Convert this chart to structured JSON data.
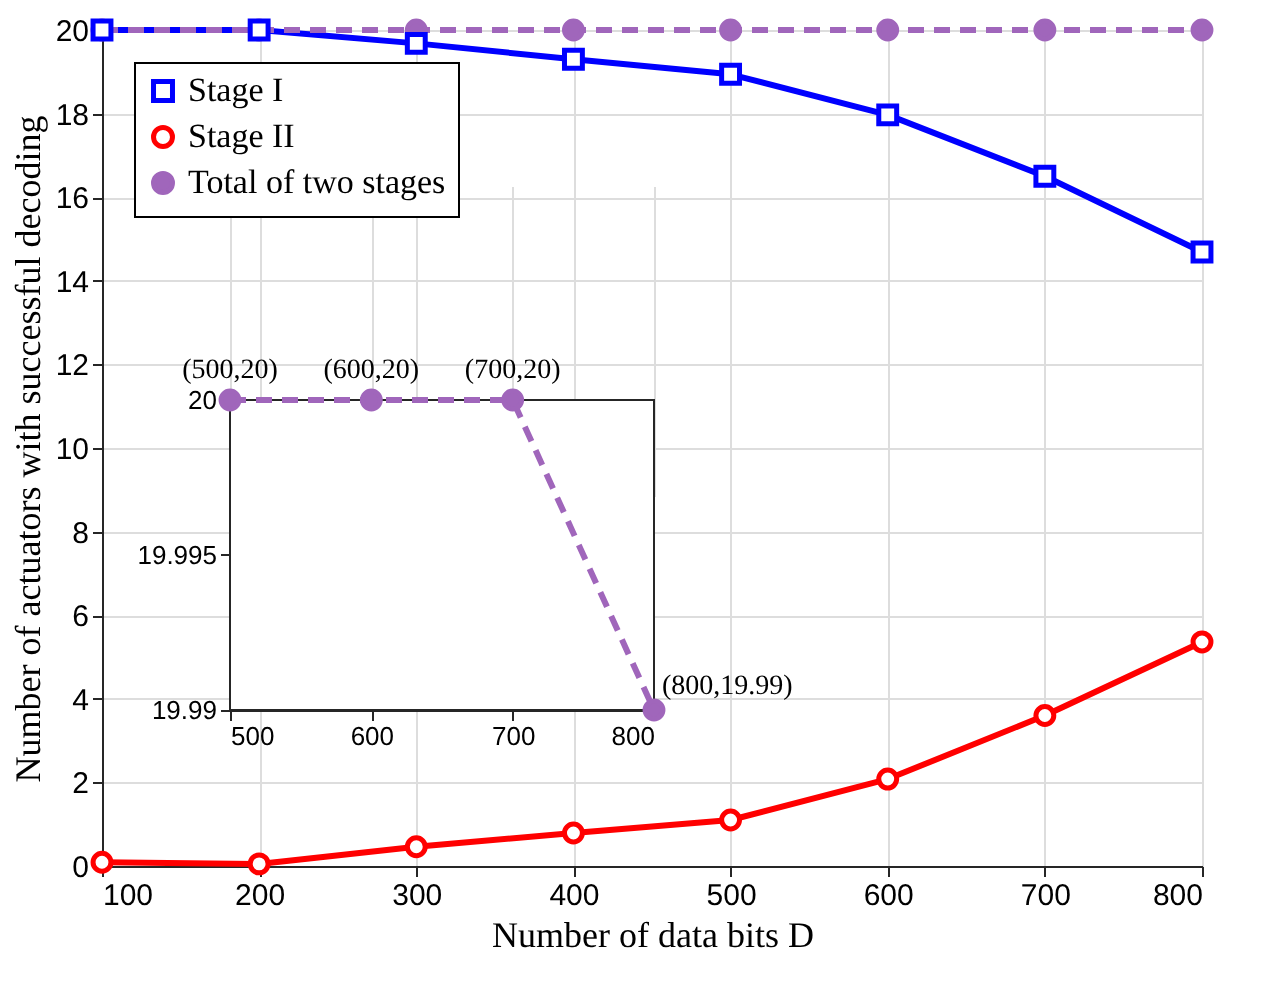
{
  "chart_data": [
    {
      "type": "line",
      "xlabel": "Number of data bits D",
      "ylabel": "Number of actuators with successful decoding",
      "x": [
        100,
        200,
        300,
        400,
        500,
        600,
        700,
        800
      ],
      "series": [
        {
          "name": "Stage I",
          "color": "#0000ff",
          "marker": "square",
          "line_style": "solid",
          "values": [
            20,
            20,
            19.68,
            19.3,
            18.94,
            17.97,
            16.5,
            14.69
          ]
        },
        {
          "name": "Stage II",
          "color": "#ff0000",
          "marker": "circle",
          "line_style": "solid",
          "values": [
            0.09,
            0.05,
            0.46,
            0.79,
            1.1,
            2.08,
            3.6,
            5.36
          ]
        },
        {
          "name": "Total of two stages",
          "color": "#a066bb",
          "marker": "circle",
          "line_style": "dashed",
          "values": [
            20,
            20,
            20,
            20,
            20,
            20,
            20,
            20
          ]
        }
      ],
      "xlim": [
        100,
        800
      ],
      "xticks": [
        100,
        200,
        300,
        400,
        500,
        600,
        700,
        800
      ],
      "ylim": [
        0,
        20
      ],
      "yticks": [
        0,
        2,
        4,
        6,
        8,
        10,
        12,
        14,
        16,
        18,
        20
      ],
      "grid": true,
      "legend": "top left"
    },
    {
      "type": "line",
      "x": [
        500,
        600,
        700,
        800
      ],
      "series": [
        {
          "color": "#a066bb",
          "marker": "circle",
          "line_style": "dashed",
          "values": [
            20,
            20,
            20,
            19.99
          ]
        }
      ],
      "xlim": [
        500,
        800
      ],
      "xticks": [
        500,
        600,
        700,
        800
      ],
      "ylim": [
        19.99,
        20
      ],
      "yticks": [
        19.99,
        19.995,
        20
      ],
      "grid": true,
      "annotations": [
        {
          "text": "(500,20)",
          "x": 500,
          "y": 20
        },
        {
          "text": "(600,20)",
          "x": 600,
          "y": 20
        },
        {
          "text": "(700,20)",
          "x": 700,
          "y": 20
        },
        {
          "text": "(800,19.99)",
          "x": 800,
          "y": 19.99
        }
      ]
    }
  ]
}
